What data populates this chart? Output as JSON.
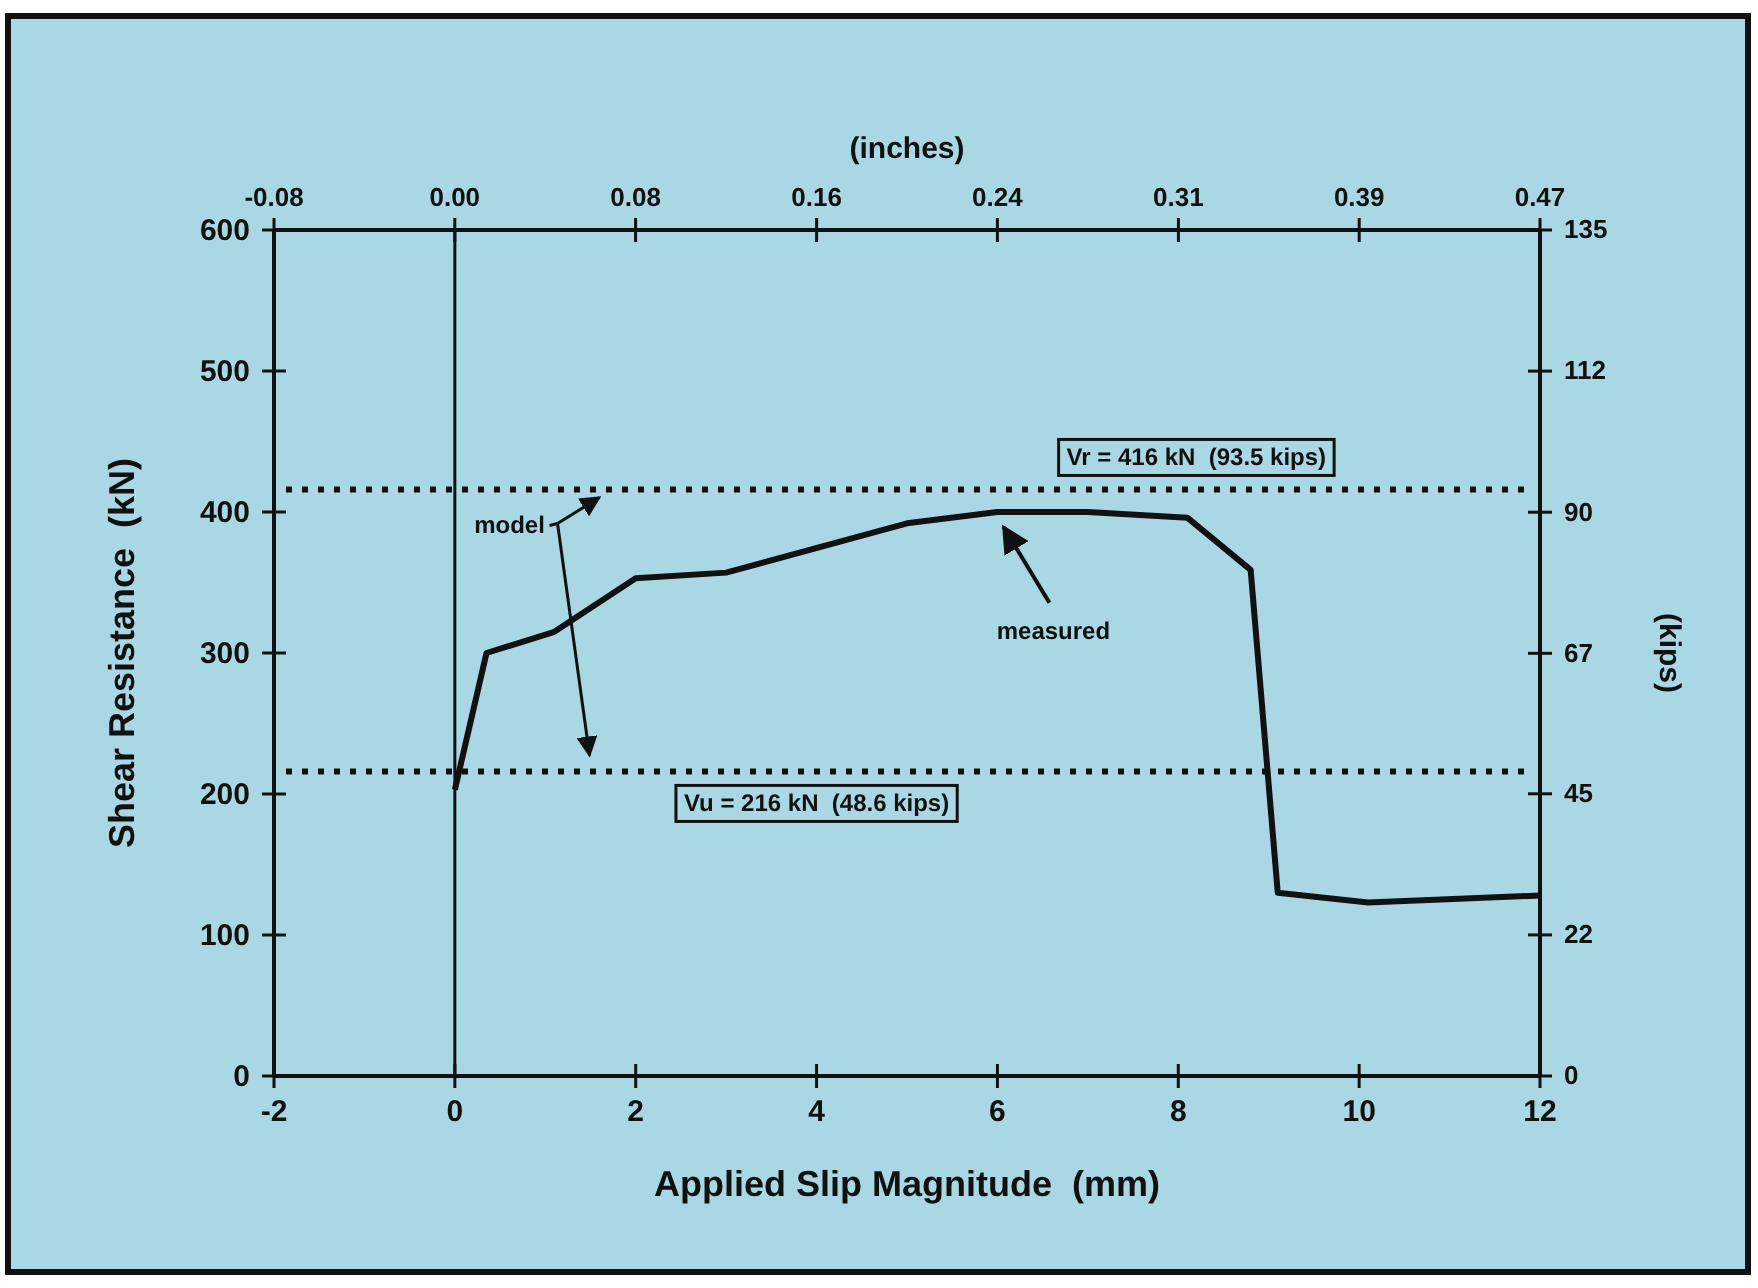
{
  "chart_data": {
    "type": "line",
    "xlabel": "Applied Slip Magnitude  (mm)",
    "ylabel": "Shear Resistance  (kN)",
    "y2label": "(kips)",
    "x2label": "(inches)",
    "x": [
      0,
      0.35,
      1.1,
      2,
      3,
      5,
      6,
      7,
      8.1,
      8.8,
      9.1,
      10.1,
      12
    ],
    "series": [
      {
        "color": "#111111",
        "values": [
          203,
          300,
          315,
          353,
          357,
          392,
          400,
          400,
          396,
          359,
          130,
          123,
          128
        ]
      }
    ],
    "xlim": [
      -2,
      12
    ],
    "xticks": [
      -2,
      0,
      2,
      4,
      6,
      8,
      10,
      12
    ],
    "ylim": [
      0,
      600
    ],
    "yticks": [
      0,
      100,
      200,
      300,
      400,
      500,
      600
    ],
    "x2lim": [
      -0.0787,
      0.4724
    ],
    "x2ticks": [
      {
        "value": -0.0787,
        "label": "-0.08"
      },
      {
        "value": 0,
        "label": "0.00"
      },
      {
        "value": 0.0787,
        "label": "0.08"
      },
      {
        "value": 0.1575,
        "label": "0.16"
      },
      {
        "value": 0.2362,
        "label": "0.24"
      },
      {
        "value": 0.315,
        "label": "0.31"
      },
      {
        "value": 0.3937,
        "label": "0.39"
      },
      {
        "value": 0.4724,
        "label": "0.47"
      }
    ],
    "y2lim": [
      0,
      134.9
    ],
    "y2ticks": [
      {
        "value": 0,
        "label": "0"
      },
      {
        "value": 22.5,
        "label": "22"
      },
      {
        "value": 45,
        "label": "45"
      },
      {
        "value": 67.4,
        "label": "67"
      },
      {
        "value": 89.9,
        "label": "90"
      },
      {
        "value": 112.4,
        "label": "112"
      },
      {
        "value": 134.9,
        "label": "135"
      }
    ],
    "ref_lines": [
      {
        "axis": "x",
        "value": 0,
        "line_style": "solid"
      },
      {
        "axis": "y",
        "value": 416,
        "label": "Vr = 416 kN  (93.5 kips)",
        "line_style": "dotted"
      },
      {
        "axis": "y",
        "value": 216,
        "label": "Vu = 216 kN  (48.6 kips)",
        "line_style": "dotted"
      }
    ],
    "annotations": [
      {
        "text": "model",
        "x": 1.6,
        "y": 416
      },
      {
        "text": "measured",
        "x": 6,
        "y": 398
      }
    ],
    "grid": false,
    "line_style": "solid",
    "marker": "none"
  }
}
